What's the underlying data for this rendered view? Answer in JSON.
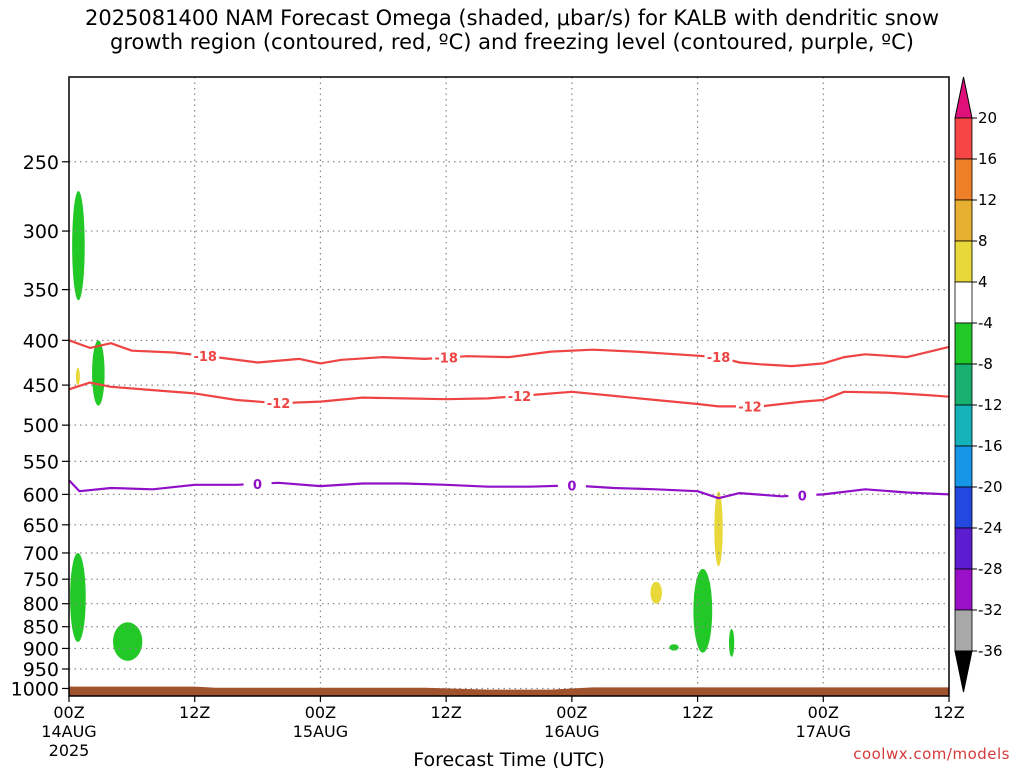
{
  "title_lines": [
    "2025081400 NAM Forecast Omega (shaded, μbar/s) for KALB with dendritic snow",
    "growth region (contoured, red, ºC) and freezing level (contoured, purple, ºC)"
  ],
  "credit": "coolwx.com/models",
  "chart_data": {
    "type": "contour",
    "xlabel": "Forecast Time (UTC)",
    "x_range_hours": [
      0,
      84
    ],
    "x_ticks": [
      {
        "hour": 0,
        "lines": [
          "00Z",
          "14AUG",
          "2025"
        ]
      },
      {
        "hour": 12,
        "lines": [
          "12Z"
        ]
      },
      {
        "hour": 24,
        "lines": [
          "00Z",
          "15AUG"
        ]
      },
      {
        "hour": 36,
        "lines": [
          "12Z"
        ]
      },
      {
        "hour": 48,
        "lines": [
          "00Z",
          "16AUG"
        ]
      },
      {
        "hour": 60,
        "lines": [
          "12Z"
        ]
      },
      {
        "hour": 72,
        "lines": [
          "00Z",
          "17AUG"
        ]
      },
      {
        "hour": 84,
        "lines": [
          "12Z"
        ]
      }
    ],
    "y_axis": {
      "scale": "log-pressure",
      "range_hpa": [
        200,
        1020
      ],
      "ticks": [
        250,
        300,
        350,
        400,
        450,
        500,
        550,
        600,
        650,
        700,
        750,
        800,
        850,
        900,
        950,
        1000
      ]
    },
    "grid": true,
    "colorbar": {
      "labels": [
        "20",
        "16",
        "12",
        "8",
        "4",
        "-4",
        "-8",
        "-12",
        "-16",
        "-20",
        "-24",
        "-28",
        "-32",
        "-36"
      ],
      "colors": [
        "#e8eeea",
        "#f54545",
        "#f08028",
        "#e8b030",
        "#e8d83a",
        "#ffffff",
        "#22c826",
        "#18b070",
        "#16b2ba",
        "#1696e6",
        "#2248e0",
        "#5c1cd0",
        "#9a10c8",
        "#a8a8a8"
      ],
      "top_arrow_color": "#e0107a",
      "bottom_arrow_color": "#000000"
    },
    "contours": [
      {
        "label": "-18",
        "color": "#ee4444",
        "points": [
          [
            0,
            400
          ],
          [
            2,
            408
          ],
          [
            4,
            403
          ],
          [
            6,
            411
          ],
          [
            10,
            413
          ],
          [
            14,
            418
          ],
          [
            18,
            424
          ],
          [
            22,
            420
          ],
          [
            24,
            425
          ],
          [
            26,
            421
          ],
          [
            30,
            418
          ],
          [
            34,
            420
          ],
          [
            38,
            417
          ],
          [
            42,
            418
          ],
          [
            46,
            412
          ],
          [
            50,
            410
          ],
          [
            54,
            412
          ],
          [
            58,
            415
          ],
          [
            62,
            418
          ],
          [
            64,
            424
          ],
          [
            66,
            426
          ],
          [
            69,
            428
          ],
          [
            72,
            425
          ],
          [
            74,
            418
          ],
          [
            76,
            415
          ],
          [
            80,
            418
          ],
          [
            84,
            407
          ]
        ],
        "label_hours": [
          13,
          36,
          62
        ]
      },
      {
        "label": "-12",
        "color": "#ee4444",
        "points": [
          [
            0,
            455
          ],
          [
            2,
            447
          ],
          [
            4,
            452
          ],
          [
            8,
            456
          ],
          [
            12,
            460
          ],
          [
            16,
            468
          ],
          [
            20,
            472
          ],
          [
            24,
            470
          ],
          [
            28,
            465
          ],
          [
            32,
            466
          ],
          [
            36,
            467
          ],
          [
            40,
            466
          ],
          [
            44,
            462
          ],
          [
            48,
            458
          ],
          [
            52,
            463
          ],
          [
            56,
            468
          ],
          [
            60,
            473
          ],
          [
            62,
            476
          ],
          [
            66,
            476
          ],
          [
            70,
            470
          ],
          [
            72,
            468
          ],
          [
            74,
            458
          ],
          [
            78,
            459
          ],
          [
            82,
            462
          ],
          [
            84,
            464
          ]
        ],
        "label_hours": [
          20,
          43,
          65
        ]
      },
      {
        "label": "0",
        "color": "#9010c8",
        "points": [
          [
            0,
            578
          ],
          [
            1,
            595
          ],
          [
            4,
            590
          ],
          [
            8,
            592
          ],
          [
            12,
            585
          ],
          [
            16,
            585
          ],
          [
            20,
            582
          ],
          [
            24,
            587
          ],
          [
            28,
            583
          ],
          [
            32,
            583
          ],
          [
            36,
            585
          ],
          [
            40,
            588
          ],
          [
            44,
            588
          ],
          [
            48,
            586
          ],
          [
            52,
            590
          ],
          [
            56,
            592
          ],
          [
            60,
            595
          ],
          [
            62,
            606
          ],
          [
            64,
            598
          ],
          [
            68,
            603
          ],
          [
            72,
            600
          ],
          [
            76,
            592
          ],
          [
            80,
            597
          ],
          [
            84,
            600
          ]
        ],
        "label_hours": [
          18,
          48,
          70
        ]
      }
    ],
    "shaded_regions": [
      {
        "omega_bin": "-4 to -8",
        "color": "#22c826",
        "hours": [
          0.3,
          1.5
        ],
        "p_hpa": [
          270,
          360
        ]
      },
      {
        "omega_bin": "-4 to -8",
        "color": "#22c826",
        "hours": [
          2.2,
          3.4
        ],
        "p_hpa": [
          400,
          475
        ]
      },
      {
        "omega_bin": "4 to 8",
        "color": "#e8d83a",
        "hours": [
          0.7,
          1.0
        ],
        "p_hpa": [
          430,
          450
        ]
      },
      {
        "omega_bin": "-4 to -8",
        "color": "#22c826",
        "hours": [
          0.1,
          1.6
        ],
        "p_hpa": [
          700,
          885
        ]
      },
      {
        "omega_bin": "-4 to -8",
        "color": "#22c826",
        "hours": [
          4.2,
          7.0
        ],
        "p_hpa": [
          840,
          930
        ]
      },
      {
        "omega_bin": "4 to 8",
        "color": "#e8d83a",
        "hours": [
          55.5,
          56.6
        ],
        "p_hpa": [
          755,
          800
        ]
      },
      {
        "omega_bin": "-4 to -8",
        "color": "#22c826",
        "hours": [
          59.6,
          61.4
        ],
        "p_hpa": [
          730,
          910
        ]
      },
      {
        "omega_bin": "4 to 8",
        "color": "#e8d83a",
        "hours": [
          61.6,
          62.4
        ],
        "p_hpa": [
          595,
          725
        ]
      },
      {
        "omega_bin": "-4 to -8",
        "color": "#22c826",
        "hours": [
          57.3,
          58.2
        ],
        "p_hpa": [
          890,
          905
        ]
      },
      {
        "omega_bin": "-4 to -8",
        "color": "#22c826",
        "hours": [
          63.0,
          63.5
        ],
        "p_hpa": [
          855,
          920
        ]
      }
    ],
    "terrain": {
      "color": "#a0522d",
      "p_top_hpa": [
        [
          0,
          995
        ],
        [
          12,
          995
        ],
        [
          14,
          998
        ],
        [
          34,
          998
        ],
        [
          40,
          1003
        ],
        [
          46,
          1003
        ],
        [
          50,
          997
        ],
        [
          84,
          997
        ]
      ]
    }
  }
}
